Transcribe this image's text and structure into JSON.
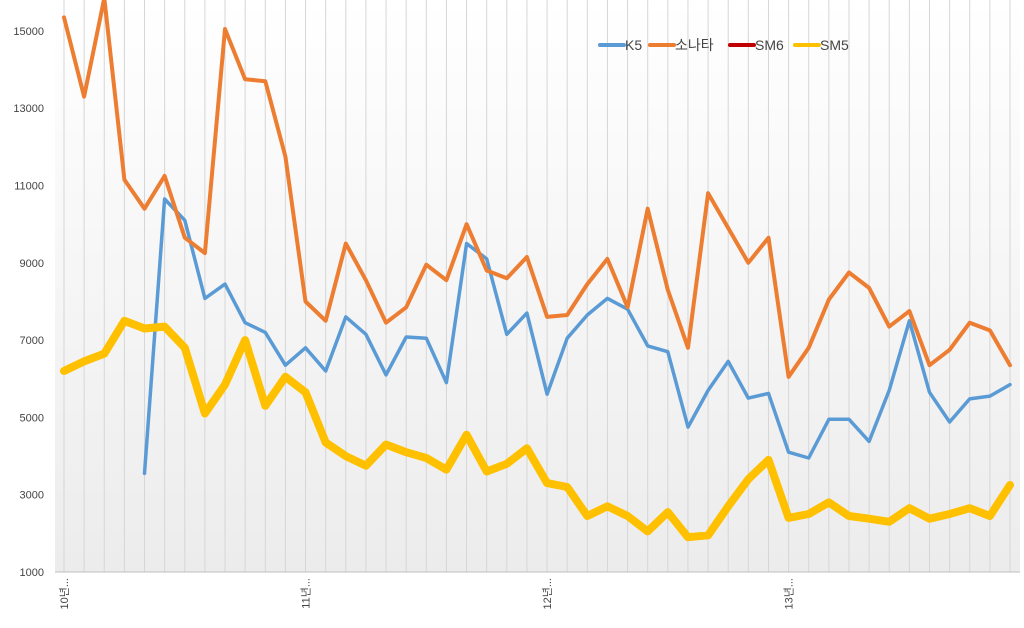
{
  "chart_data": {
    "type": "line",
    "title": "",
    "xlabel": "",
    "ylabel": "",
    "ylim": [
      1000,
      15800
    ],
    "yticks": [
      1000,
      3000,
      5000,
      7000,
      9000,
      11000,
      13000,
      15000
    ],
    "ytick_labels": [
      "1000",
      "3000",
      "5000",
      "7000",
      "9000",
      "11000",
      "13000",
      "15000"
    ],
    "x_count": 48,
    "x_tick_labels": [
      {
        "index": 0,
        "label": "10년..."
      },
      {
        "index": 12,
        "label": "11년..."
      },
      {
        "index": 24,
        "label": "12년..."
      },
      {
        "index": 36,
        "label": "13년..."
      }
    ],
    "grid": "vertical",
    "legend_position": "top-right",
    "series": [
      {
        "name": "K5",
        "color": "#5b9bd5",
        "values": [
          null,
          null,
          null,
          null,
          3550,
          10650,
          10100,
          8080,
          8450,
          7450,
          7200,
          6350,
          6800,
          6200,
          7600,
          7150,
          6100,
          7080,
          7050,
          5900,
          9500,
          9100,
          7150,
          7700,
          5600,
          7050,
          7650,
          8080,
          7800,
          6850,
          6700,
          4750,
          5700,
          6450,
          5500,
          5620,
          4100,
          3950,
          4950,
          4950,
          4380,
          5700,
          7500,
          5650,
          4880,
          5480,
          5550,
          5850
        ]
      },
      {
        "name": "소나타",
        "color": "#ed7d31",
        "values": [
          15350,
          13300,
          15850,
          11150,
          10400,
          11250,
          9650,
          9250,
          15050,
          13750,
          13700,
          11750,
          8000,
          7500,
          9500,
          8550,
          7450,
          7850,
          8950,
          8550,
          10000,
          8800,
          8600,
          9150,
          7600,
          7650,
          8450,
          9100,
          7850,
          10400,
          8300,
          6800,
          10800,
          9900,
          9000,
          9650,
          6050,
          6800,
          8050,
          8750,
          8350,
          7350,
          7750,
          6350,
          6750,
          7450,
          7250,
          6350
        ]
      },
      {
        "name": "SM6",
        "color": "#c00000",
        "values": []
      },
      {
        "name": "SM5",
        "color": "#ffc000",
        "values": [
          6200,
          6450,
          6650,
          7500,
          7300,
          7350,
          6800,
          5100,
          5850,
          7000,
          5300,
          6050,
          5650,
          4350,
          4000,
          3750,
          4300,
          4100,
          3950,
          3650,
          4550,
          3600,
          3800,
          4200,
          3300,
          3200,
          2450,
          2700,
          2450,
          2050,
          2550,
          1900,
          1950,
          2700,
          3400,
          3900,
          2400,
          2500,
          2800,
          2450,
          2380,
          2300,
          2650,
          2380,
          2500,
          2650,
          2450,
          3250
        ]
      }
    ]
  }
}
